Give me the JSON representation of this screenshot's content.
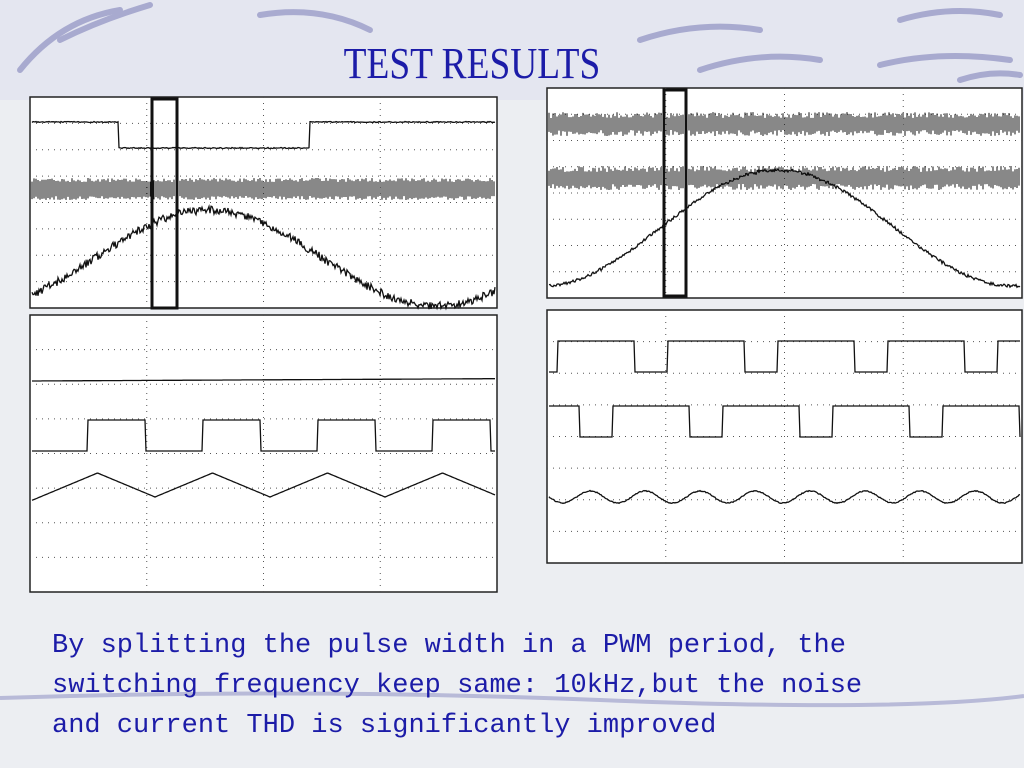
{
  "title": "TEST RESULTS",
  "body": {
    "lines": [
      "By splitting the pulse width in a PWM period, the",
      "switching frequency keep same: 10kHz,but the noise",
      "and current THD is significantly improved"
    ]
  }
}
